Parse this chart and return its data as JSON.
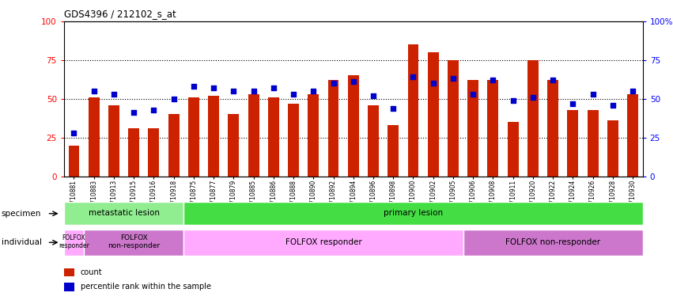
{
  "title": "GDS4396 / 212102_s_at",
  "samples": [
    "GSM710881",
    "GSM710883",
    "GSM710913",
    "GSM710915",
    "GSM710916",
    "GSM710918",
    "GSM710875",
    "GSM710877",
    "GSM710879",
    "GSM710885",
    "GSM710886",
    "GSM710888",
    "GSM710890",
    "GSM710892",
    "GSM710894",
    "GSM710896",
    "GSM710898",
    "GSM710900",
    "GSM710902",
    "GSM710905",
    "GSM710906",
    "GSM710908",
    "GSM710911",
    "GSM710920",
    "GSM710922",
    "GSM710924",
    "GSM710926",
    "GSM710928",
    "GSM710930"
  ],
  "counts": [
    20,
    51,
    46,
    31,
    31,
    40,
    51,
    52,
    40,
    53,
    51,
    47,
    53,
    62,
    65,
    46,
    33,
    85,
    80,
    75,
    62,
    62,
    35,
    75,
    62,
    43,
    43,
    36,
    53
  ],
  "percentiles": [
    28,
    55,
    53,
    41,
    43,
    50,
    58,
    57,
    55,
    55,
    57,
    53,
    55,
    60,
    61,
    52,
    44,
    64,
    60,
    63,
    53,
    62,
    49,
    51,
    62,
    47,
    53,
    46,
    55
  ],
  "bar_color": "#cc2200",
  "dot_color": "#0000cc",
  "specimen_groups": [
    {
      "label": "metastatic lesion",
      "start": 0,
      "end": 6,
      "color": "#90ee90"
    },
    {
      "label": "primary lesion",
      "start": 6,
      "end": 29,
      "color": "#44dd44"
    }
  ],
  "individual_groups": [
    {
      "label": "FOLFOX\nresponder",
      "start": 0,
      "end": 1,
      "color": "#ffaaff",
      "fontsize": 5.5
    },
    {
      "label": "FOLFOX\nnon-responder",
      "start": 1,
      "end": 6,
      "color": "#cc77cc",
      "fontsize": 6.5
    },
    {
      "label": "FOLFOX responder",
      "start": 6,
      "end": 20,
      "color": "#ffaaff",
      "fontsize": 7.5
    },
    {
      "label": "FOLFOX non-responder",
      "start": 20,
      "end": 29,
      "color": "#cc77cc",
      "fontsize": 7.5
    }
  ],
  "specimen_label": "specimen",
  "individual_label": "individual",
  "legend_items": [
    {
      "color": "#cc2200",
      "label": "count"
    },
    {
      "color": "#0000cc",
      "label": "percentile rank within the sample"
    }
  ]
}
